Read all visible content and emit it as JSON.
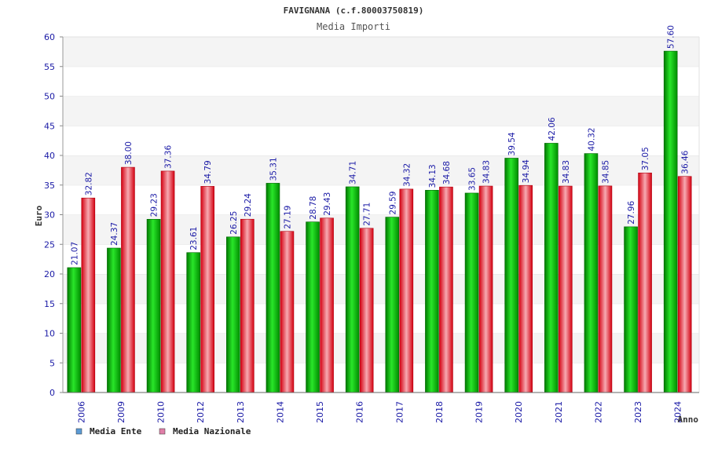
{
  "chart_data": {
    "type": "bar",
    "title": "FAVIGNANA (c.f.80003750819)",
    "subtitle": "Media Importi",
    "xlabel": "Anno",
    "ylabel": "Euro",
    "ylim": [
      0,
      60
    ],
    "yticks": [
      "0",
      "5",
      "10",
      "15",
      "20",
      "25",
      "30",
      "35",
      "40",
      "45",
      "50",
      "55",
      "60"
    ],
    "grid": true,
    "legend_position": "bottom-left",
    "categories": [
      "2006",
      "2009",
      "2010",
      "2012",
      "2013",
      "2014",
      "2015",
      "2016",
      "2017",
      "2018",
      "2019",
      "2020",
      "2021",
      "2022",
      "2023",
      "2024"
    ],
    "series": [
      {
        "name": "Media Ente",
        "color": "#00b400",
        "legend_color": "#5b9bd5",
        "values": [
          21.07,
          24.37,
          29.23,
          23.61,
          26.25,
          35.31,
          28.78,
          34.71,
          29.59,
          34.13,
          33.65,
          39.54,
          42.06,
          40.32,
          27.96,
          57.6
        ],
        "labels": [
          "21.07",
          "24.37",
          "29.23",
          "23.61",
          "26.25",
          "35.31",
          "28.78",
          "34.71",
          "29.59",
          "34.13",
          "33.65",
          "39.54",
          "42.06",
          "40.32",
          "27.96",
          "57.60"
        ]
      },
      {
        "name": "Media Nazionale",
        "color": "#e8303a",
        "legend_color": "#e07fa8",
        "values": [
          32.82,
          38.0,
          37.36,
          34.79,
          29.24,
          27.19,
          29.43,
          27.71,
          34.32,
          34.68,
          34.83,
          34.94,
          34.83,
          34.85,
          37.05,
          36.46
        ],
        "labels": [
          "32.82",
          "38.00",
          "37.36",
          "34.79",
          "29.24",
          "27.19",
          "29.43",
          "27.71",
          "34.32",
          "34.68",
          "34.83",
          "34.94",
          "34.83",
          "34.85",
          "37.05",
          "36.46"
        ]
      }
    ]
  }
}
